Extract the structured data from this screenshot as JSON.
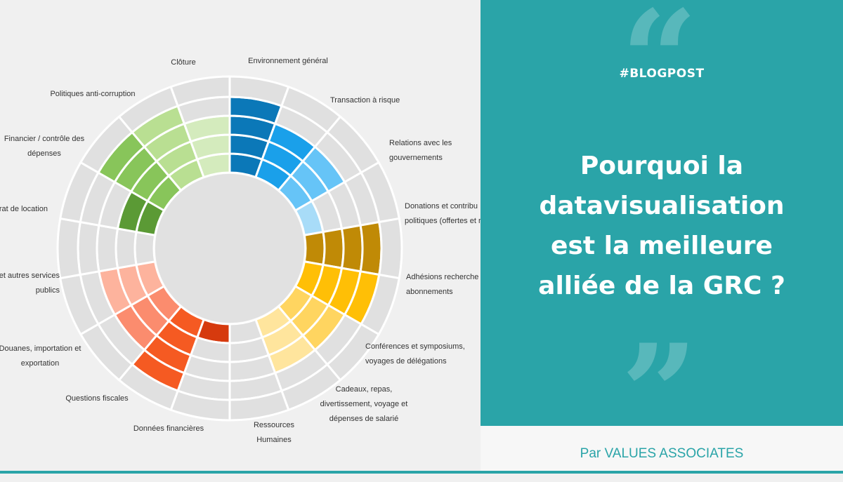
{
  "chart_data": {
    "type": "radial-segmented",
    "rings": 4,
    "segments": [
      {
        "label": "Environnement général",
        "level": 4,
        "color": "#0b78b8"
      },
      {
        "label": "Transaction à risque",
        "level": 3,
        "color": "#1aa0ea"
      },
      {
        "label": "Relations avec les\ngouvernements",
        "level": 3,
        "color": "#66c4f7"
      },
      {
        "label": "Donations et contributions\npolitiques (offertes et reçues)",
        "level": 1,
        "color": "#a8dcf8"
      },
      {
        "label": "Adhésions recherches,\nabonnements",
        "level": 4,
        "color": "#c08a06"
      },
      {
        "label": "Conférences et symposiums,\nvoyages de délégations",
        "level": 4,
        "color": "#ffbf06"
      },
      {
        "label": "Cadeaux, repas,\ndivertissement, voyage et\ndépenses de salarié",
        "level": 3,
        "color": "#ffd560"
      },
      {
        "label": "Ressources\nHumaines",
        "level": 3,
        "color": "#ffe59d"
      },
      {
        "label": "Données financières",
        "level": 0,
        "color": "#e0e0e0"
      },
      {
        "label": "Questions fiscales",
        "level": 1,
        "color": "#d63a0e"
      },
      {
        "label": "Douanes, importation et\nexportation",
        "level": 4,
        "color": "#f55a22"
      },
      {
        "label": "Achats et autres services\npublics",
        "level": 3,
        "color": "#fb8c6e"
      },
      {
        "label": "Contrat de location",
        "level": 3,
        "color": "#fdb39d"
      },
      {
        "label": "",
        "level": 0,
        "color": "#e0e0e0"
      },
      {
        "label": "Financier / contrôle des\ndépenses",
        "level": 2,
        "color": "#5b9a35"
      },
      {
        "label": "",
        "level": 4,
        "color": "#88c55a"
      },
      {
        "label": "Politiques anti-corruption",
        "level": 4,
        "color": "#b9df92"
      },
      {
        "label": "Clôture",
        "level": 3,
        "color": "#d4ebbd"
      }
    ],
    "visible_labels": [
      {
        "text": "Environnement général",
        "lines": [
          "Environnement général"
        ]
      },
      {
        "text": "Transaction à risque",
        "lines": [
          "Transaction à risque"
        ]
      },
      {
        "text": "Relations avec les gouvernements",
        "lines": [
          "Relations avec les",
          "gouvernements"
        ]
      },
      {
        "text": "Donations et contributions politiques",
        "lines": [
          "Donations et contribu",
          "politiques (offertes et r"
        ]
      },
      {
        "text": "Adhésions recherches, abonnements",
        "lines": [
          "Adhésions recherche",
          "abonnements"
        ]
      },
      {
        "text": "Conférences et symposiums, voyages de délégations",
        "lines": [
          "Conférences et symposiums,",
          "voyages de délégations"
        ]
      },
      {
        "text": "Cadeaux",
        "lines": [
          "Cadeaux, repas,",
          "divertissement, voyage et",
          "dépenses de salarié"
        ]
      },
      {
        "text": "Ressources Humaines",
        "lines": [
          "Ressources",
          "Humaines"
        ]
      },
      {
        "text": "Données financières",
        "lines": [
          "Données financières"
        ]
      },
      {
        "text": "Questions fiscales",
        "lines": [
          "Questions fiscales"
        ]
      },
      {
        "text": "Douanes",
        "lines": [
          "Douanes, importation et",
          "exportation"
        ]
      },
      {
        "text": "autres services publics",
        "lines": [
          "et autres services",
          "publics"
        ]
      },
      {
        "text": "Contrat de location",
        "lines": [
          "rat de location"
        ]
      },
      {
        "text": "Financier",
        "lines": [
          "Financier / contrôle des",
          "dépenses"
        ]
      },
      {
        "text": "Politiques anti-corruption",
        "lines": [
          "Politiques anti-corruption"
        ]
      },
      {
        "text": "Clôture",
        "lines": [
          "Clôture"
        ]
      }
    ]
  },
  "blog": {
    "tag": "#BLOGPOST",
    "headline_lines": [
      "Pourquoi la",
      "datavisualisation",
      "est la meilleure",
      "alliée de la GRC ?"
    ],
    "quote_open": "“",
    "quote_close": "”"
  },
  "footer": {
    "text": "Par VALUES ASSOCIATES"
  },
  "colors": {
    "teal": "#2aa4a8",
    "background": "#f0f0f0",
    "empty_cell": "#e0e0e0",
    "center_disc": "#e1e1e1"
  }
}
